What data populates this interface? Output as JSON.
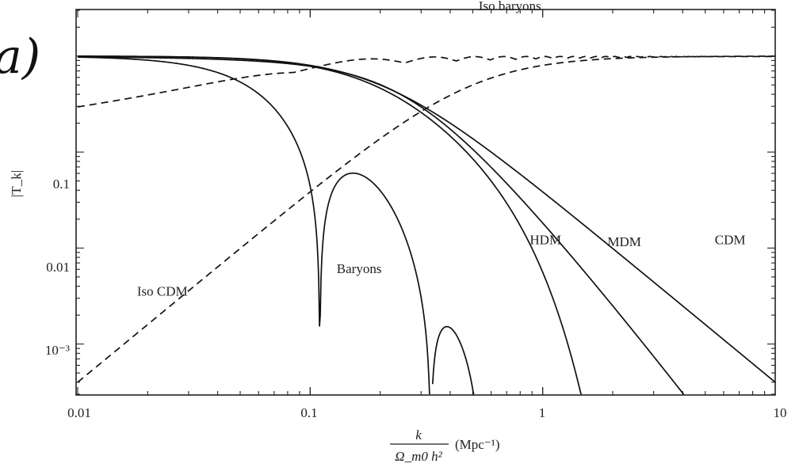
{
  "panel_label": "a)",
  "chart_data": {
    "type": "line",
    "xscale": "log",
    "yscale": "log",
    "xlim": [
      0.01,
      10
    ],
    "ylim": [
      0.0003,
      3
    ],
    "x_ticks": [
      "0.01",
      "0.1",
      "1",
      "10"
    ],
    "y_ticks": [
      "0.1",
      "0.01",
      "10⁻³"
    ],
    "y_tick_values": [
      0.1,
      0.01,
      0.001
    ],
    "ylabel": "|T_k|",
    "xlabel_fraction": {
      "numerator": "k",
      "denominator": "Ω_m0 h²"
    },
    "xlabel_unit": "(Mpc⁻¹)",
    "series": [
      {
        "name": "CDM",
        "style": "solid",
        "model": "tf",
        "params": {
          "k0": 0.2,
          "n": 2.0
        },
        "label_x": 5.5,
        "label_y": 0.011
      },
      {
        "name": "MDM",
        "style": "solid",
        "model": "tf",
        "params": {
          "k0": 0.26,
          "n": 2.35,
          "fs": 0.8
        },
        "label_x": 1.9,
        "label_y": 0.0105
      },
      {
        "name": "HDM",
        "style": "solid",
        "model": "hdm",
        "params": {
          "k0": 0.2,
          "n": 2.0,
          "kc": 0.72,
          "p": 2.0
        },
        "label_x": 0.88,
        "label_y": 0.011
      },
      {
        "name": "Baryons",
        "style": "solid",
        "model": "baryons",
        "params": {
          "k0": 0.1,
          "n": 2.0,
          "ks": 0.135,
          "kd": 0.5,
          "ko": 0.22
        },
        "label_x": 0.13,
        "label_y": 0.0055
      },
      {
        "name": "Iso baryons",
        "style": "dashed",
        "model": "isob",
        "params": {
          "k1": 0.08,
          "a": 2.0,
          "kd": 0.15,
          "ko": 0.17
        },
        "label_x": 0.53,
        "label_y": 3.0
      },
      {
        "name": "Iso CDM",
        "style": "dashed",
        "model": "isocdm",
        "params": {
          "k2": 0.5,
          "a": 2.0
        },
        "label_x": 0.018,
        "label_y": 0.0032
      }
    ]
  }
}
